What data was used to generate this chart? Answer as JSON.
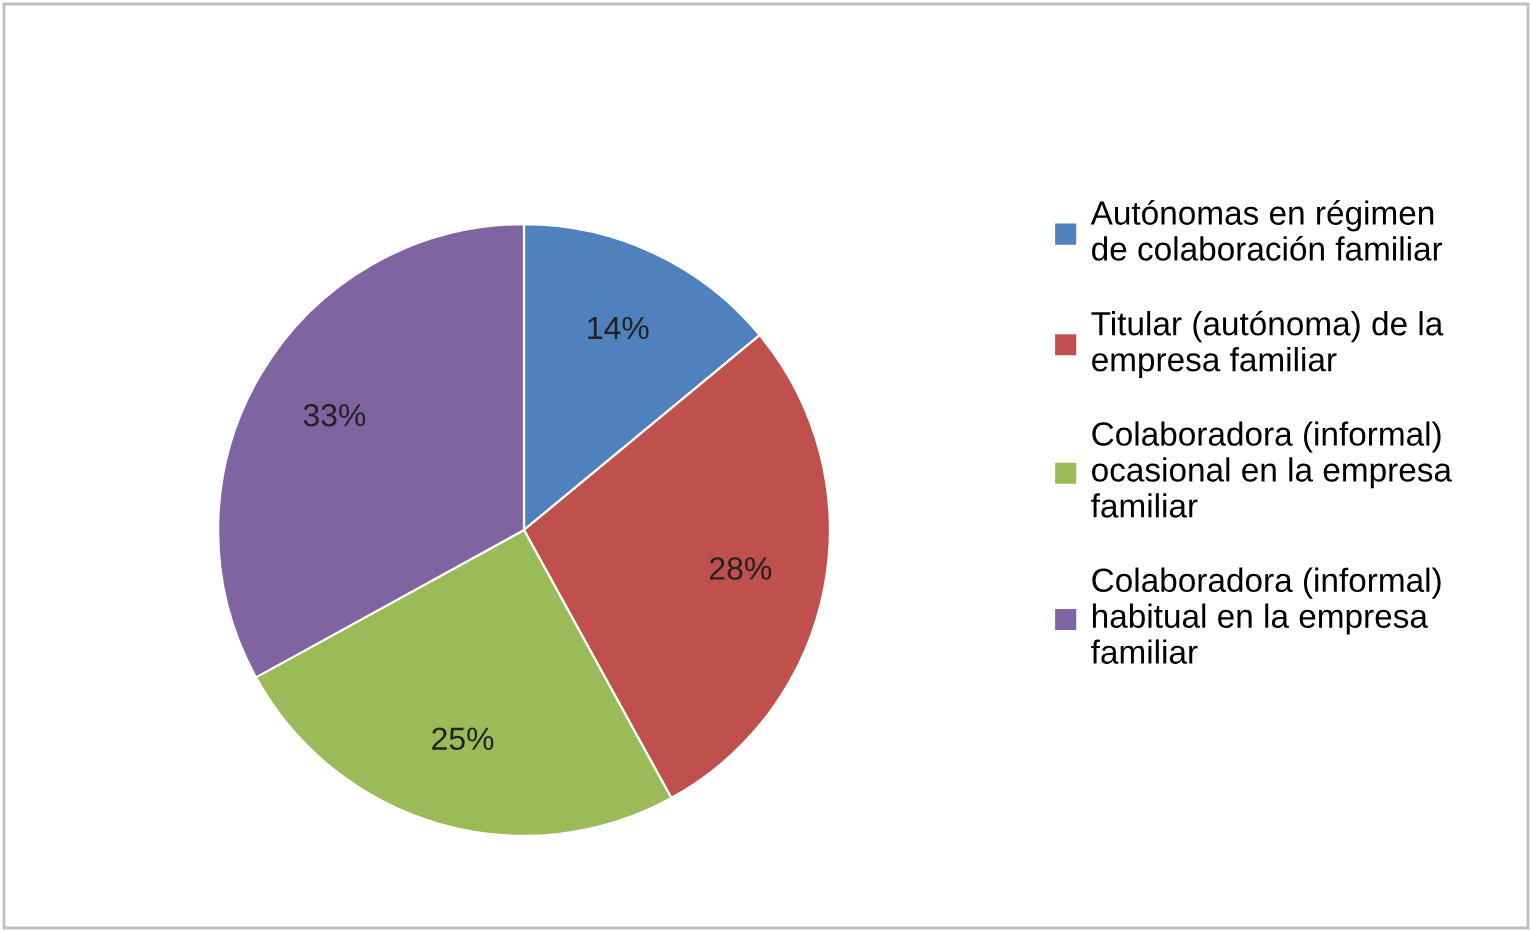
{
  "chart_data": {
    "type": "pie",
    "categories": [
      "Autónomas en régimen\nde colaboración familiar",
      "Titular (autónoma) de la\nempresa familiar",
      "Colaboradora (informal)\nocasional en la empresa\nfamiliar",
      "Colaboradora (informal)\nhabitual en la empresa\nfamiliar"
    ],
    "values": [
      14,
      28,
      25,
      33
    ],
    "colors": [
      "#4f81bd",
      "#c0504d",
      "#9bbb59",
      "#8064a2"
    ],
    "value_labels": [
      "14%",
      "28%",
      "25%",
      "33%"
    ],
    "legend": "right"
  }
}
